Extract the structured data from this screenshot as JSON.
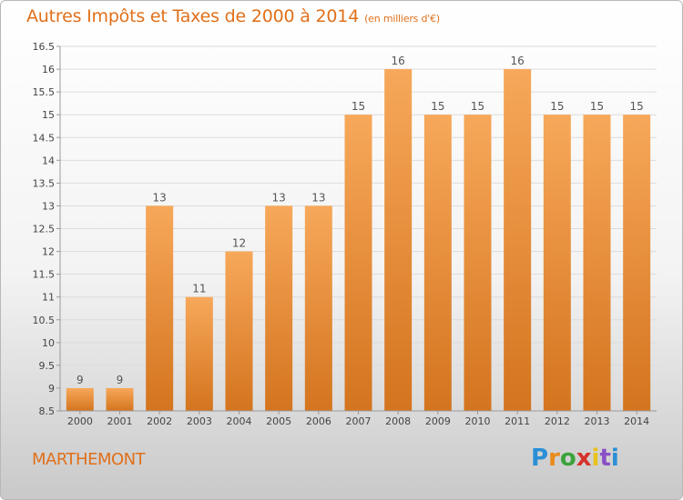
{
  "header": {
    "title": "Autres Impôts et Taxes de 2000 à 2014",
    "unit": "(en milliers d'€)"
  },
  "footer": {
    "place": "MARTHEMONT",
    "logo_text": "Proxiti"
  },
  "colors": {
    "title": "#e0701a",
    "bar_light": "#f7a85a",
    "bar_dark": "#d4741e",
    "grid": "#dcdcdc"
  },
  "chart_data": {
    "type": "bar",
    "title": "Autres Impôts et Taxes de 2000 à 2014",
    "subtitle": "(en milliers d'€)",
    "categories": [
      "2000",
      "2001",
      "2002",
      "2003",
      "2004",
      "2005",
      "2006",
      "2007",
      "2008",
      "2009",
      "2010",
      "2011",
      "2012",
      "2013",
      "2014"
    ],
    "values": [
      9,
      9,
      13,
      11,
      12,
      13,
      13,
      15,
      16,
      15,
      15,
      16,
      15,
      15,
      15
    ],
    "data_labels": [
      "9",
      "9",
      "13",
      "11",
      "12",
      "13",
      "13",
      "15",
      "16",
      "15",
      "15",
      "16",
      "15",
      "15",
      "15"
    ],
    "ylim": [
      8.5,
      16.5
    ],
    "yticks": [
      "8.5",
      "9",
      "9.5",
      "10",
      "10.5",
      "11",
      "11.5",
      "12",
      "12.5",
      "13",
      "13.5",
      "14",
      "14.5",
      "15",
      "15.5",
      "16",
      "16.5"
    ],
    "grid": true,
    "legend": "none"
  }
}
